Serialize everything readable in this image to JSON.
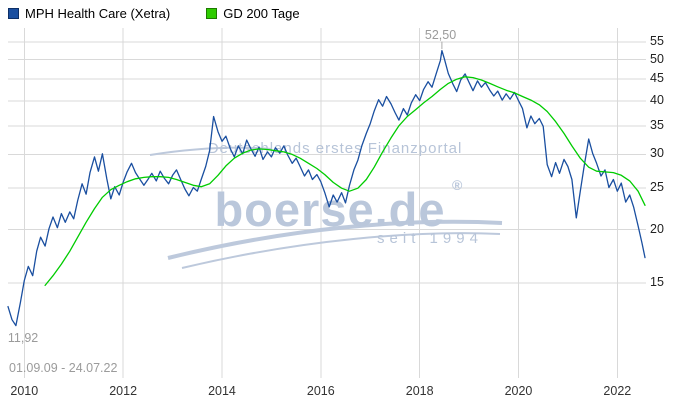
{
  "legend": {
    "items": [
      {
        "label": "MPH Health Care (Xetra)",
        "color": "#1a4fa0",
        "border": "#0d2f66"
      },
      {
        "label": "GD 200 Tage",
        "color": "#2ecc00",
        "border": "#1d7a00"
      }
    ]
  },
  "watermark": {
    "tagline": "Deutschlands erstes Finanzportal",
    "brand": "boerse.de",
    "registered": "®",
    "since": "seit 1994"
  },
  "chart_data": {
    "type": "line",
    "title": "MPH Health Care (Xetra) with 200-day moving average",
    "y_scale": "log",
    "grid": true,
    "legend_position": "top-left",
    "x_axis": {
      "min": 2009.67,
      "max": 2022.58,
      "ticks": [
        2010,
        2012,
        2014,
        2016,
        2018,
        2020,
        2022
      ]
    },
    "y_axis": {
      "min": 9.0,
      "max": 58.7,
      "ticks": [
        15,
        20,
        25,
        30,
        35,
        40,
        45,
        50,
        55
      ]
    },
    "annotations": {
      "high": {
        "label": "52,50",
        "x": 2018.45,
        "value": 52.5
      },
      "low": {
        "label": "11,92",
        "x": 2009.83,
        "value": 11.92
      },
      "date_range": "01.09.09 - 24.07.22"
    },
    "series": [
      {
        "name": "MPH Health Care (Xetra)",
        "color": "#1a4fa0",
        "points": [
          [
            2009.67,
            13.2
          ],
          [
            2009.75,
            12.3
          ],
          [
            2009.83,
            11.92
          ],
          [
            2009.92,
            13.5
          ],
          [
            2010.0,
            15.2
          ],
          [
            2010.08,
            16.4
          ],
          [
            2010.17,
            15.6
          ],
          [
            2010.25,
            17.8
          ],
          [
            2010.33,
            19.2
          ],
          [
            2010.42,
            18.3
          ],
          [
            2010.5,
            20.1
          ],
          [
            2010.58,
            21.4
          ],
          [
            2010.67,
            20.2
          ],
          [
            2010.75,
            21.8
          ],
          [
            2010.83,
            20.8
          ],
          [
            2010.92,
            22.0
          ],
          [
            2011.0,
            21.2
          ],
          [
            2011.08,
            23.4
          ],
          [
            2011.17,
            25.6
          ],
          [
            2011.25,
            24.2
          ],
          [
            2011.33,
            27.2
          ],
          [
            2011.42,
            29.6
          ],
          [
            2011.5,
            27.4
          ],
          [
            2011.58,
            30.1
          ],
          [
            2011.67,
            26.3
          ],
          [
            2011.75,
            23.6
          ],
          [
            2011.83,
            25.2
          ],
          [
            2011.92,
            24.1
          ],
          [
            2012.0,
            25.8
          ],
          [
            2012.08,
            27.3
          ],
          [
            2012.17,
            28.6
          ],
          [
            2012.25,
            27.2
          ],
          [
            2012.33,
            26.3
          ],
          [
            2012.42,
            25.4
          ],
          [
            2012.5,
            26.2
          ],
          [
            2012.58,
            27.1
          ],
          [
            2012.67,
            26.0
          ],
          [
            2012.75,
            27.4
          ],
          [
            2012.83,
            26.4
          ],
          [
            2012.92,
            25.6
          ],
          [
            2013.0,
            26.8
          ],
          [
            2013.08,
            27.6
          ],
          [
            2013.17,
            26.1
          ],
          [
            2013.25,
            24.9
          ],
          [
            2013.33,
            24.0
          ],
          [
            2013.42,
            25.1
          ],
          [
            2013.5,
            24.6
          ],
          [
            2013.58,
            26.2
          ],
          [
            2013.67,
            28.1
          ],
          [
            2013.75,
            30.6
          ],
          [
            2013.83,
            36.8
          ],
          [
            2013.92,
            33.9
          ],
          [
            2014.0,
            32.2
          ],
          [
            2014.08,
            33.1
          ],
          [
            2014.17,
            30.9
          ],
          [
            2014.25,
            29.6
          ],
          [
            2014.33,
            31.4
          ],
          [
            2014.42,
            30.1
          ],
          [
            2014.5,
            32.4
          ],
          [
            2014.58,
            31.0
          ],
          [
            2014.67,
            29.7
          ],
          [
            2014.75,
            31.2
          ],
          [
            2014.83,
            29.2
          ],
          [
            2014.92,
            30.4
          ],
          [
            2015.0,
            29.6
          ],
          [
            2015.08,
            31.1
          ],
          [
            2015.17,
            30.2
          ],
          [
            2015.25,
            31.4
          ],
          [
            2015.33,
            29.9
          ],
          [
            2015.42,
            28.6
          ],
          [
            2015.5,
            29.4
          ],
          [
            2015.58,
            28.1
          ],
          [
            2015.67,
            26.7
          ],
          [
            2015.75,
            27.6
          ],
          [
            2015.83,
            26.2
          ],
          [
            2015.92,
            26.9
          ],
          [
            2016.0,
            25.9
          ],
          [
            2016.08,
            24.4
          ],
          [
            2016.17,
            22.6
          ],
          [
            2016.25,
            24.1
          ],
          [
            2016.33,
            23.2
          ],
          [
            2016.42,
            24.4
          ],
          [
            2016.5,
            23.1
          ],
          [
            2016.58,
            25.4
          ],
          [
            2016.67,
            27.6
          ],
          [
            2016.75,
            29.1
          ],
          [
            2016.83,
            31.4
          ],
          [
            2016.92,
            33.6
          ],
          [
            2017.0,
            35.4
          ],
          [
            2017.08,
            37.9
          ],
          [
            2017.17,
            40.3
          ],
          [
            2017.25,
            38.9
          ],
          [
            2017.33,
            41.0
          ],
          [
            2017.42,
            39.4
          ],
          [
            2017.5,
            37.6
          ],
          [
            2017.58,
            36.1
          ],
          [
            2017.67,
            38.4
          ],
          [
            2017.75,
            37.1
          ],
          [
            2017.83,
            39.6
          ],
          [
            2017.92,
            41.4
          ],
          [
            2018.0,
            40.1
          ],
          [
            2018.08,
            42.6
          ],
          [
            2018.17,
            44.4
          ],
          [
            2018.25,
            43.1
          ],
          [
            2018.33,
            46.2
          ],
          [
            2018.42,
            49.8
          ],
          [
            2018.45,
            52.5
          ],
          [
            2018.5,
            50.2
          ],
          [
            2018.58,
            46.4
          ],
          [
            2018.67,
            43.9
          ],
          [
            2018.75,
            42.1
          ],
          [
            2018.83,
            44.8
          ],
          [
            2018.92,
            46.3
          ],
          [
            2019.0,
            44.2
          ],
          [
            2019.08,
            42.3
          ],
          [
            2019.17,
            44.6
          ],
          [
            2019.25,
            43.1
          ],
          [
            2019.33,
            44.2
          ],
          [
            2019.42,
            42.4
          ],
          [
            2019.5,
            41.1
          ],
          [
            2019.58,
            42.2
          ],
          [
            2019.67,
            40.2
          ],
          [
            2019.75,
            41.6
          ],
          [
            2019.83,
            40.4
          ],
          [
            2019.92,
            41.9
          ],
          [
            2020.0,
            40.1
          ],
          [
            2020.08,
            38.4
          ],
          [
            2020.17,
            34.6
          ],
          [
            2020.25,
            36.9
          ],
          [
            2020.33,
            35.4
          ],
          [
            2020.42,
            36.4
          ],
          [
            2020.5,
            34.9
          ],
          [
            2020.58,
            28.4
          ],
          [
            2020.67,
            26.6
          ],
          [
            2020.75,
            28.7
          ],
          [
            2020.83,
            27.1
          ],
          [
            2020.92,
            29.2
          ],
          [
            2021.0,
            28.1
          ],
          [
            2021.08,
            26.2
          ],
          [
            2021.17,
            21.3
          ],
          [
            2021.25,
            24.6
          ],
          [
            2021.33,
            28.2
          ],
          [
            2021.42,
            32.6
          ],
          [
            2021.5,
            30.2
          ],
          [
            2021.58,
            28.6
          ],
          [
            2021.67,
            26.7
          ],
          [
            2021.75,
            27.6
          ],
          [
            2021.83,
            25.1
          ],
          [
            2021.92,
            26.2
          ],
          [
            2022.0,
            24.6
          ],
          [
            2022.08,
            25.7
          ],
          [
            2022.17,
            23.2
          ],
          [
            2022.25,
            24.1
          ],
          [
            2022.33,
            22.6
          ],
          [
            2022.42,
            20.4
          ],
          [
            2022.5,
            18.6
          ],
          [
            2022.56,
            17.2
          ]
        ]
      },
      {
        "name": "GD 200 Tage",
        "color": "#00cc00",
        "points": [
          [
            2010.42,
            14.8
          ],
          [
            2010.58,
            15.6
          ],
          [
            2010.75,
            16.6
          ],
          [
            2010.92,
            17.8
          ],
          [
            2011.08,
            19.2
          ],
          [
            2011.25,
            20.8
          ],
          [
            2011.42,
            22.4
          ],
          [
            2011.58,
            23.8
          ],
          [
            2011.75,
            24.8
          ],
          [
            2011.92,
            25.4
          ],
          [
            2012.08,
            25.9
          ],
          [
            2012.25,
            26.3
          ],
          [
            2012.42,
            26.5
          ],
          [
            2012.58,
            26.6
          ],
          [
            2012.75,
            26.6
          ],
          [
            2012.92,
            26.5
          ],
          [
            2013.08,
            26.2
          ],
          [
            2013.25,
            25.8
          ],
          [
            2013.42,
            25.4
          ],
          [
            2013.58,
            25.2
          ],
          [
            2013.75,
            25.6
          ],
          [
            2013.92,
            26.8
          ],
          [
            2014.08,
            28.2
          ],
          [
            2014.25,
            29.4
          ],
          [
            2014.42,
            30.2
          ],
          [
            2014.58,
            30.7
          ],
          [
            2014.75,
            30.9
          ],
          [
            2014.92,
            30.8
          ],
          [
            2015.08,
            30.6
          ],
          [
            2015.25,
            30.4
          ],
          [
            2015.42,
            30.0
          ],
          [
            2015.58,
            29.4
          ],
          [
            2015.75,
            28.6
          ],
          [
            2015.92,
            27.8
          ],
          [
            2016.08,
            26.9
          ],
          [
            2016.25,
            25.8
          ],
          [
            2016.42,
            25.0
          ],
          [
            2016.58,
            24.6
          ],
          [
            2016.75,
            25.0
          ],
          [
            2016.92,
            26.2
          ],
          [
            2017.08,
            28.0
          ],
          [
            2017.25,
            30.4
          ],
          [
            2017.42,
            32.8
          ],
          [
            2017.58,
            35.0
          ],
          [
            2017.75,
            36.8
          ],
          [
            2017.92,
            38.2
          ],
          [
            2018.08,
            39.6
          ],
          [
            2018.25,
            41.0
          ],
          [
            2018.42,
            42.6
          ],
          [
            2018.58,
            44.0
          ],
          [
            2018.75,
            45.0
          ],
          [
            2018.92,
            45.6
          ],
          [
            2019.08,
            45.4
          ],
          [
            2019.25,
            44.8
          ],
          [
            2019.42,
            44.0
          ],
          [
            2019.58,
            43.2
          ],
          [
            2019.75,
            42.4
          ],
          [
            2019.92,
            41.8
          ],
          [
            2020.08,
            41.0
          ],
          [
            2020.25,
            40.2
          ],
          [
            2020.42,
            39.2
          ],
          [
            2020.58,
            37.8
          ],
          [
            2020.75,
            35.8
          ],
          [
            2020.92,
            33.6
          ],
          [
            2021.08,
            31.4
          ],
          [
            2021.25,
            29.4
          ],
          [
            2021.42,
            28.0
          ],
          [
            2021.58,
            27.4
          ],
          [
            2021.75,
            27.3
          ],
          [
            2021.92,
            27.2
          ],
          [
            2022.08,
            26.8
          ],
          [
            2022.25,
            26.0
          ],
          [
            2022.42,
            24.6
          ],
          [
            2022.56,
            22.8
          ]
        ]
      }
    ]
  }
}
